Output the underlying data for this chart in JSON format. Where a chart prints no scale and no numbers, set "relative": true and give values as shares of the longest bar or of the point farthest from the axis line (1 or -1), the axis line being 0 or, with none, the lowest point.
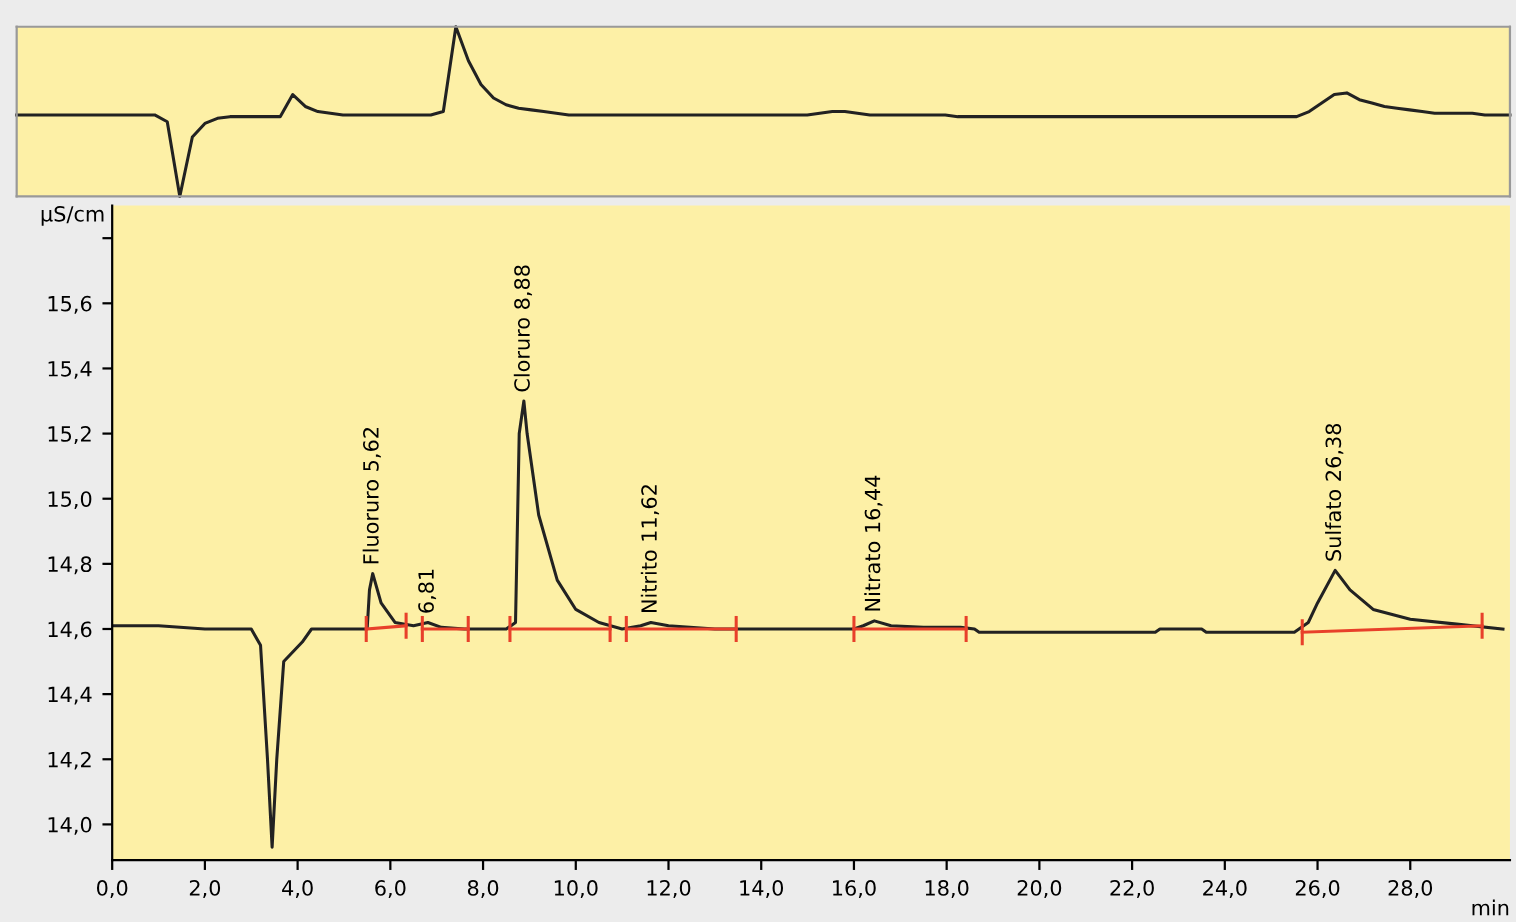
{
  "chart_data": [
    {
      "type": "line",
      "relative": true,
      "grid": false,
      "categories": [
        null,
        null,
        null,
        null,
        null,
        null,
        null,
        null,
        null,
        null,
        null,
        null,
        null,
        null,
        null,
        null,
        null,
        null,
        null,
        null,
        null,
        null,
        null,
        null,
        null,
        null,
        null,
        null,
        null,
        null,
        null,
        null,
        null,
        null,
        null,
        null,
        null,
        null,
        null,
        null,
        null,
        null,
        null,
        null,
        null,
        null,
        null,
        null,
        null,
        null,
        null,
        null,
        null,
        null,
        null,
        null,
        null,
        null,
        null,
        null,
        null,
        null,
        null,
        null,
        null,
        null,
        null,
        null,
        null,
        null,
        null,
        null,
        null,
        null,
        null,
        null,
        null,
        null,
        null,
        null,
        null,
        null,
        null,
        null,
        null,
        null,
        null,
        null,
        null,
        null,
        null,
        null,
        null,
        null,
        null,
        null,
        null,
        null,
        null,
        null,
        null,
        null,
        null,
        null,
        null,
        null,
        null,
        null,
        null,
        null,
        null,
        null,
        null,
        null,
        null,
        null,
        null,
        null,
        null,
        null
      ],
      "series": [
        {
          "color": "#222222",
          "values": [
            0.48,
            0.48,
            0.48,
            0.48,
            0.48,
            0.48,
            0.48,
            0.48,
            0.48,
            0.48,
            0.48,
            0.48,
            0.44,
            0.0,
            0.35,
            0.43,
            0.46,
            0.47,
            0.47,
            0.47,
            0.47,
            0.47,
            0.6,
            0.53,
            0.5,
            0.49,
            0.48,
            0.48,
            0.48,
            0.48,
            0.48,
            0.48,
            0.48,
            0.48,
            0.5,
            1.0,
            0.8,
            0.66,
            0.58,
            0.54,
            0.52,
            0.51,
            0.5,
            0.49,
            0.48,
            0.48,
            0.48,
            0.48,
            0.48,
            0.48,
            0.48,
            0.48,
            0.48,
            0.48,
            0.48,
            0.48,
            0.48,
            0.48,
            0.48,
            0.48,
            0.48,
            0.48,
            0.48,
            0.48,
            0.49,
            0.5,
            0.5,
            0.49,
            0.48,
            0.48,
            0.48,
            0.48,
            0.48,
            0.48,
            0.48,
            0.47,
            0.47,
            0.47,
            0.47,
            0.47,
            0.47,
            0.47,
            0.47,
            0.47,
            0.47,
            0.47,
            0.47,
            0.47,
            0.47,
            0.47,
            0.47,
            0.47,
            0.47,
            0.47,
            0.47,
            0.47,
            0.47,
            0.47,
            0.47,
            0.47,
            0.47,
            0.47,
            0.47,
            0.5,
            0.55,
            0.6,
            0.61,
            0.57,
            0.55,
            0.53,
            0.52,
            0.51,
            0.5,
            0.49,
            0.49,
            0.49,
            0.49,
            0.48,
            0.48,
            0.48
          ]
        }
      ]
    },
    {
      "type": "line",
      "ylabel": "µS/cm",
      "xlabel": "min",
      "grid": false,
      "xlim": [
        0,
        30.15
      ],
      "ylim": [
        13.89,
        15.9
      ],
      "xticks": [
        {
          "value": 0,
          "label": "0,0"
        },
        {
          "value": 2,
          "label": "2,0"
        },
        {
          "value": 4,
          "label": "4,0"
        },
        {
          "value": 6,
          "label": "6,0"
        },
        {
          "value": 8,
          "label": "8,0"
        },
        {
          "value": 10,
          "label": "10,0"
        },
        {
          "value": 12,
          "label": "12,0"
        },
        {
          "value": 14,
          "label": "14,0"
        },
        {
          "value": 16,
          "label": "16,0"
        },
        {
          "value": 18,
          "label": "18,0"
        },
        {
          "value": 20,
          "label": "20,0"
        },
        {
          "value": 22,
          "label": "22,0"
        },
        {
          "value": 24,
          "label": "24,0"
        },
        {
          "value": 26,
          "label": "26,0"
        },
        {
          "value": 28,
          "label": "28,0"
        }
      ],
      "yticks": [
        {
          "value": 14.0,
          "label": "14,0"
        },
        {
          "value": 14.2,
          "label": "14,2"
        },
        {
          "value": 14.4,
          "label": "14,4"
        },
        {
          "value": 14.6,
          "label": "14,6"
        },
        {
          "value": 14.8,
          "label": "14,8"
        },
        {
          "value": 15.0,
          "label": "15,0"
        },
        {
          "value": 15.2,
          "label": "15,2"
        },
        {
          "value": 15.4,
          "label": "15,4"
        },
        {
          "value": 15.6,
          "label": "15,6"
        },
        {
          "value": 15.8,
          "label": null
        }
      ],
      "series": [
        {
          "color": "#222222",
          "x": [
            0,
            1.0,
            2.0,
            3.0,
            3.2,
            3.35,
            3.45,
            3.55,
            3.7,
            3.9,
            4.1,
            4.3,
            5.0,
            5.5,
            5.55,
            5.62,
            5.8,
            6.1,
            6.5,
            6.81,
            7.1,
            7.6,
            8.5,
            8.7,
            8.78,
            8.88,
            8.95,
            9.2,
            9.6,
            10.0,
            10.5,
            11.0,
            11.4,
            11.62,
            12.0,
            13.0,
            16.0,
            16.2,
            16.44,
            16.8,
            17.5,
            18.3,
            18.6,
            18.7,
            22.5,
            22.6,
            23.5,
            23.6,
            25.5,
            25.8,
            26.0,
            26.38,
            26.7,
            27.2,
            28.0,
            29.0,
            30.0
          ],
          "values": [
            14.61,
            14.61,
            14.6,
            14.6,
            14.55,
            14.2,
            13.93,
            14.2,
            14.5,
            14.53,
            14.56,
            14.6,
            14.6,
            14.6,
            14.72,
            14.77,
            14.68,
            14.62,
            14.61,
            14.62,
            14.605,
            14.6,
            14.6,
            14.62,
            15.2,
            15.3,
            15.2,
            14.95,
            14.75,
            14.66,
            14.62,
            14.6,
            14.61,
            14.62,
            14.61,
            14.6,
            14.6,
            14.61,
            14.625,
            14.61,
            14.605,
            14.605,
            14.6,
            14.59,
            14.59,
            14.6,
            14.6,
            14.59,
            14.59,
            14.62,
            14.68,
            14.78,
            14.72,
            14.66,
            14.63,
            14.615,
            14.6
          ]
        },
        {
          "color": "#e8402a",
          "errors": [
            0.04,
            0.04
          ],
          "x": [
            5.48,
            6.34
          ],
          "values": [
            14.6,
            14.61
          ]
        },
        {
          "color": "#e8402a",
          "errors": [
            0.04,
            0.04
          ],
          "x": [
            6.69,
            7.68
          ],
          "values": [
            14.6,
            14.6
          ]
        },
        {
          "color": "#e8402a",
          "errors": [
            0.04,
            0.04
          ],
          "x": [
            8.58,
            10.74
          ],
          "values": [
            14.6,
            14.6
          ]
        },
        {
          "color": "#e8402a",
          "errors": [
            0.04,
            0.04
          ],
          "x": [
            11.09,
            13.46
          ],
          "values": [
            14.6,
            14.6
          ]
        },
        {
          "color": "#e8402a",
          "errors": [
            0.04,
            0.04
          ],
          "x": [
            16.0,
            18.42
          ],
          "values": [
            14.6,
            14.6
          ]
        },
        {
          "color": "#e8402a",
          "errors": [
            0.04,
            0.04
          ],
          "x": [
            25.67,
            29.55
          ],
          "values": [
            14.59,
            14.61
          ]
        }
      ],
      "annotations": [
        {
          "text": "Fluoruro 5,62",
          "x": 5.62,
          "y": 14.77
        },
        {
          "text": "6,81",
          "x": 6.81,
          "y": 14.62
        },
        {
          "text": "Cloruro 8,88",
          "x": 8.88,
          "y": 15.3
        },
        {
          "text": "Nitrito 11,62",
          "x": 11.62,
          "y": 14.62
        },
        {
          "text": "Nitrato 16,44",
          "x": 16.44,
          "y": 14.625
        },
        {
          "text": "Sulfato 26,38",
          "x": 26.38,
          "y": 14.78
        }
      ]
    }
  ]
}
